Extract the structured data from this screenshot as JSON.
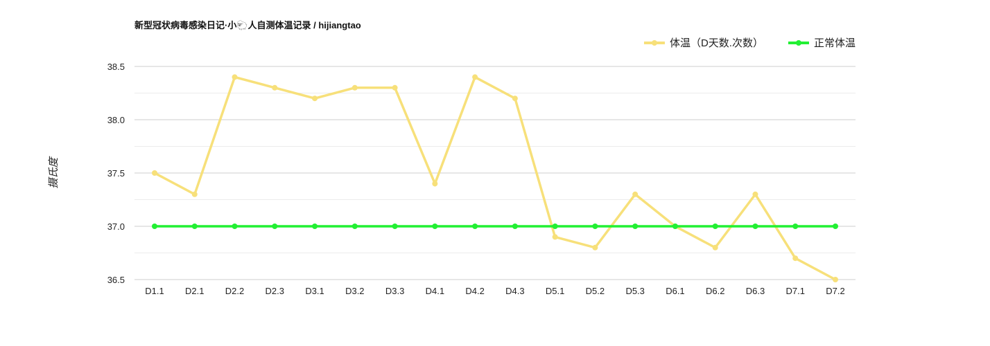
{
  "chart_data": {
    "type": "line",
    "title": "新型冠状病毒感染日记·小🐑人自测体温记录 / hijiangtao",
    "ylabel": "摄氏度",
    "xlabel": "",
    "ylim": [
      36.5,
      38.5
    ],
    "yticks": [
      "36.5",
      "37.0",
      "37.5",
      "38.0",
      "38.5"
    ],
    "grid": true,
    "legend_position": "top-right",
    "categories": [
      "D1.1",
      "D2.1",
      "D2.2",
      "D2.3",
      "D3.1",
      "D3.2",
      "D3.3",
      "D4.1",
      "D4.2",
      "D4.3",
      "D5.1",
      "D5.2",
      "D5.3",
      "D6.1",
      "D6.2",
      "D6.3",
      "D7.1",
      "D7.2"
    ],
    "series": [
      {
        "name": "体温（D天数.次数）",
        "color": "#f7e07a",
        "values": [
          37.5,
          37.3,
          38.4,
          38.3,
          38.2,
          38.3,
          38.3,
          37.4,
          38.4,
          38.2,
          36.9,
          36.8,
          37.3,
          37.0,
          36.8,
          37.3,
          36.7,
          36.5
        ]
      },
      {
        "name": "正常体温",
        "color": "#22f033",
        "values": [
          37.0,
          37.0,
          37.0,
          37.0,
          37.0,
          37.0,
          37.0,
          37.0,
          37.0,
          37.0,
          37.0,
          37.0,
          37.0,
          37.0,
          37.0,
          37.0,
          37.0,
          37.0
        ]
      }
    ]
  }
}
